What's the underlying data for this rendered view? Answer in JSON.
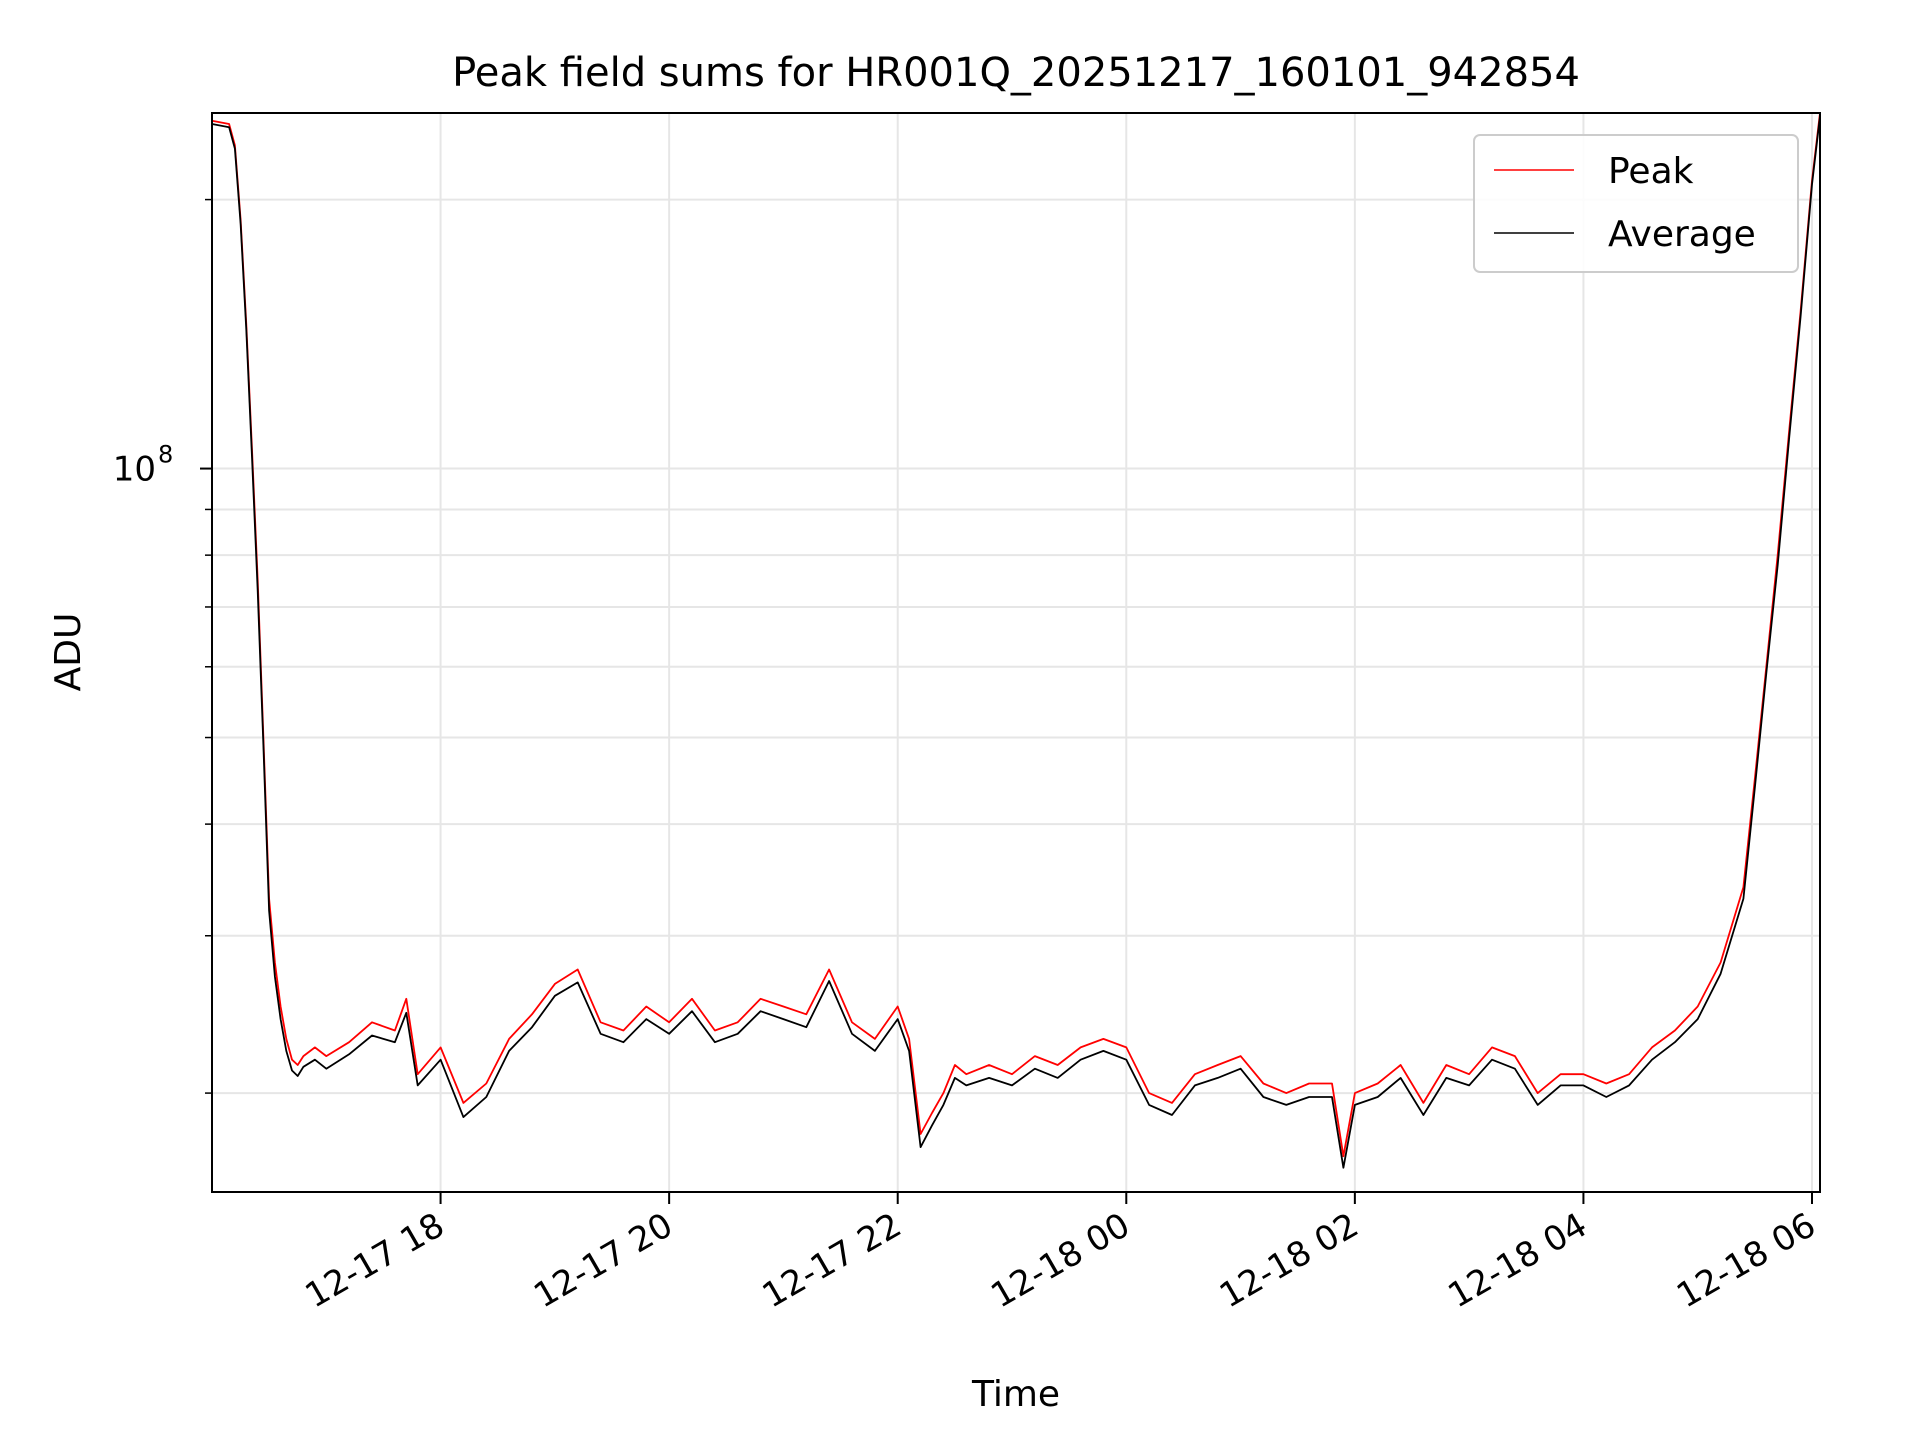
{
  "chart_data": {
    "type": "line",
    "title": "Peak field sums for HR001Q_20251217_160101_942854",
    "xlabel": "Time",
    "ylabel": "ADU",
    "yscale": "log",
    "x_units": "hours since 12-17 00:00",
    "xlim": [
      16.0,
      30.07
    ],
    "ylim": [
      15500000,
      250000000
    ],
    "x_ticks": [
      {
        "value": 18,
        "label": "12-17 18"
      },
      {
        "value": 20,
        "label": "12-17 20"
      },
      {
        "value": 22,
        "label": "12-17 22"
      },
      {
        "value": 24,
        "label": "12-18 00"
      },
      {
        "value": 26,
        "label": "12-18 02"
      },
      {
        "value": 28,
        "label": "12-18 04"
      },
      {
        "value": 30,
        "label": "12-18 06"
      }
    ],
    "y_major_ticks": [
      {
        "value": 100000000,
        "base": "10",
        "exp": "8"
      }
    ],
    "y_minor_ticks": [
      20000000,
      30000000,
      40000000,
      50000000,
      60000000,
      70000000,
      80000000,
      90000000,
      200000000
    ],
    "grid": true,
    "legend": {
      "position": "top-right",
      "entries": [
        "Peak",
        "Average"
      ]
    },
    "series": [
      {
        "name": "Peak",
        "color": "#ff0000",
        "x": [
          16.0,
          16.15,
          16.2,
          16.25,
          16.3,
          16.35,
          16.4,
          16.45,
          16.5,
          16.55,
          16.6,
          16.65,
          16.7,
          16.75,
          16.8,
          16.9,
          17.0,
          17.2,
          17.4,
          17.6,
          17.7,
          17.8,
          18.0,
          18.2,
          18.4,
          18.6,
          18.8,
          19.0,
          19.2,
          19.4,
          19.6,
          19.8,
          20.0,
          20.2,
          20.4,
          20.6,
          20.8,
          21.0,
          21.2,
          21.4,
          21.6,
          21.8,
          22.0,
          22.1,
          22.2,
          22.3,
          22.4,
          22.5,
          22.6,
          22.8,
          23.0,
          23.2,
          23.4,
          23.6,
          23.8,
          24.0,
          24.2,
          24.4,
          24.6,
          24.8,
          25.0,
          25.2,
          25.4,
          25.6,
          25.8,
          25.9,
          26.0,
          26.2,
          26.4,
          26.6,
          26.8,
          27.0,
          27.2,
          27.4,
          27.6,
          27.8,
          28.0,
          28.2,
          28.4,
          28.6,
          28.8,
          29.0,
          29.2,
          29.4,
          29.5,
          29.6,
          29.7,
          29.8,
          29.9,
          30.0,
          30.07
        ],
        "y": [
          245000000,
          243000000,
          230000000,
          190000000,
          145000000,
          105000000,
          75000000,
          50000000,
          33000000,
          28000000,
          25000000,
          23000000,
          21800000,
          21500000,
          22000000,
          22500000,
          22000000,
          22800000,
          24000000,
          23500000,
          25500000,
          21000000,
          22500000,
          19500000,
          20500000,
          23000000,
          24500000,
          26500000,
          27500000,
          24000000,
          23500000,
          25000000,
          24000000,
          25500000,
          23500000,
          24000000,
          25500000,
          25000000,
          24500000,
          27500000,
          24000000,
          23000000,
          25000000,
          23000000,
          18000000,
          19000000,
          20000000,
          21500000,
          21000000,
          21500000,
          21000000,
          22000000,
          21500000,
          22500000,
          23000000,
          22500000,
          20000000,
          19500000,
          21000000,
          21500000,
          22000000,
          20500000,
          20000000,
          20500000,
          20500000,
          17000000,
          20000000,
          20500000,
          21500000,
          19500000,
          21500000,
          21000000,
          22500000,
          22000000,
          20000000,
          21000000,
          21000000,
          20500000,
          21000000,
          22500000,
          23500000,
          25000000,
          28000000,
          34000000,
          45000000,
          60000000,
          80000000,
          110000000,
          150000000,
          210000000,
          250000000
        ]
      },
      {
        "name": "Average",
        "color": "#000000",
        "x": [
          16.0,
          16.15,
          16.2,
          16.25,
          16.3,
          16.35,
          16.4,
          16.45,
          16.5,
          16.55,
          16.6,
          16.65,
          16.7,
          16.75,
          16.8,
          16.9,
          17.0,
          17.2,
          17.4,
          17.6,
          17.7,
          17.8,
          18.0,
          18.2,
          18.4,
          18.6,
          18.8,
          19.0,
          19.2,
          19.4,
          19.6,
          19.8,
          20.0,
          20.2,
          20.4,
          20.6,
          20.8,
          21.0,
          21.2,
          21.4,
          21.6,
          21.8,
          22.0,
          22.1,
          22.2,
          22.3,
          22.4,
          22.5,
          22.6,
          22.8,
          23.0,
          23.2,
          23.4,
          23.6,
          23.8,
          24.0,
          24.2,
          24.4,
          24.6,
          24.8,
          25.0,
          25.2,
          25.4,
          25.6,
          25.8,
          25.9,
          26.0,
          26.2,
          26.4,
          26.6,
          26.8,
          27.0,
          27.2,
          27.4,
          27.6,
          27.8,
          28.0,
          28.2,
          28.4,
          28.6,
          28.8,
          29.0,
          29.2,
          29.4,
          29.5,
          29.6,
          29.7,
          29.8,
          29.9,
          30.0,
          30.07
        ],
        "y": [
          243000000,
          241000000,
          228000000,
          188000000,
          143000000,
          103000000,
          73000000,
          49000000,
          32000000,
          27000000,
          24200000,
          22300000,
          21200000,
          20900000,
          21400000,
          21800000,
          21300000,
          22100000,
          23200000,
          22800000,
          24600000,
          20400000,
          21800000,
          18800000,
          19800000,
          22300000,
          23700000,
          25700000,
          26600000,
          23300000,
          22800000,
          24200000,
          23300000,
          24700000,
          22800000,
          23300000,
          24700000,
          24200000,
          23700000,
          26700000,
          23300000,
          22300000,
          24200000,
          22300000,
          17400000,
          18400000,
          19400000,
          20800000,
          20400000,
          20800000,
          20400000,
          21300000,
          20800000,
          21800000,
          22300000,
          21800000,
          19400000,
          18900000,
          20400000,
          20800000,
          21300000,
          19800000,
          19400000,
          19800000,
          19800000,
          16500000,
          19400000,
          19800000,
          20800000,
          18900000,
          20800000,
          20400000,
          21800000,
          21300000,
          19400000,
          20400000,
          20400000,
          19800000,
          20400000,
          21800000,
          22800000,
          24200000,
          27200000,
          33000000,
          44000000,
          59000000,
          78000000,
          108000000,
          148000000,
          208000000,
          248000000
        ]
      }
    ]
  }
}
